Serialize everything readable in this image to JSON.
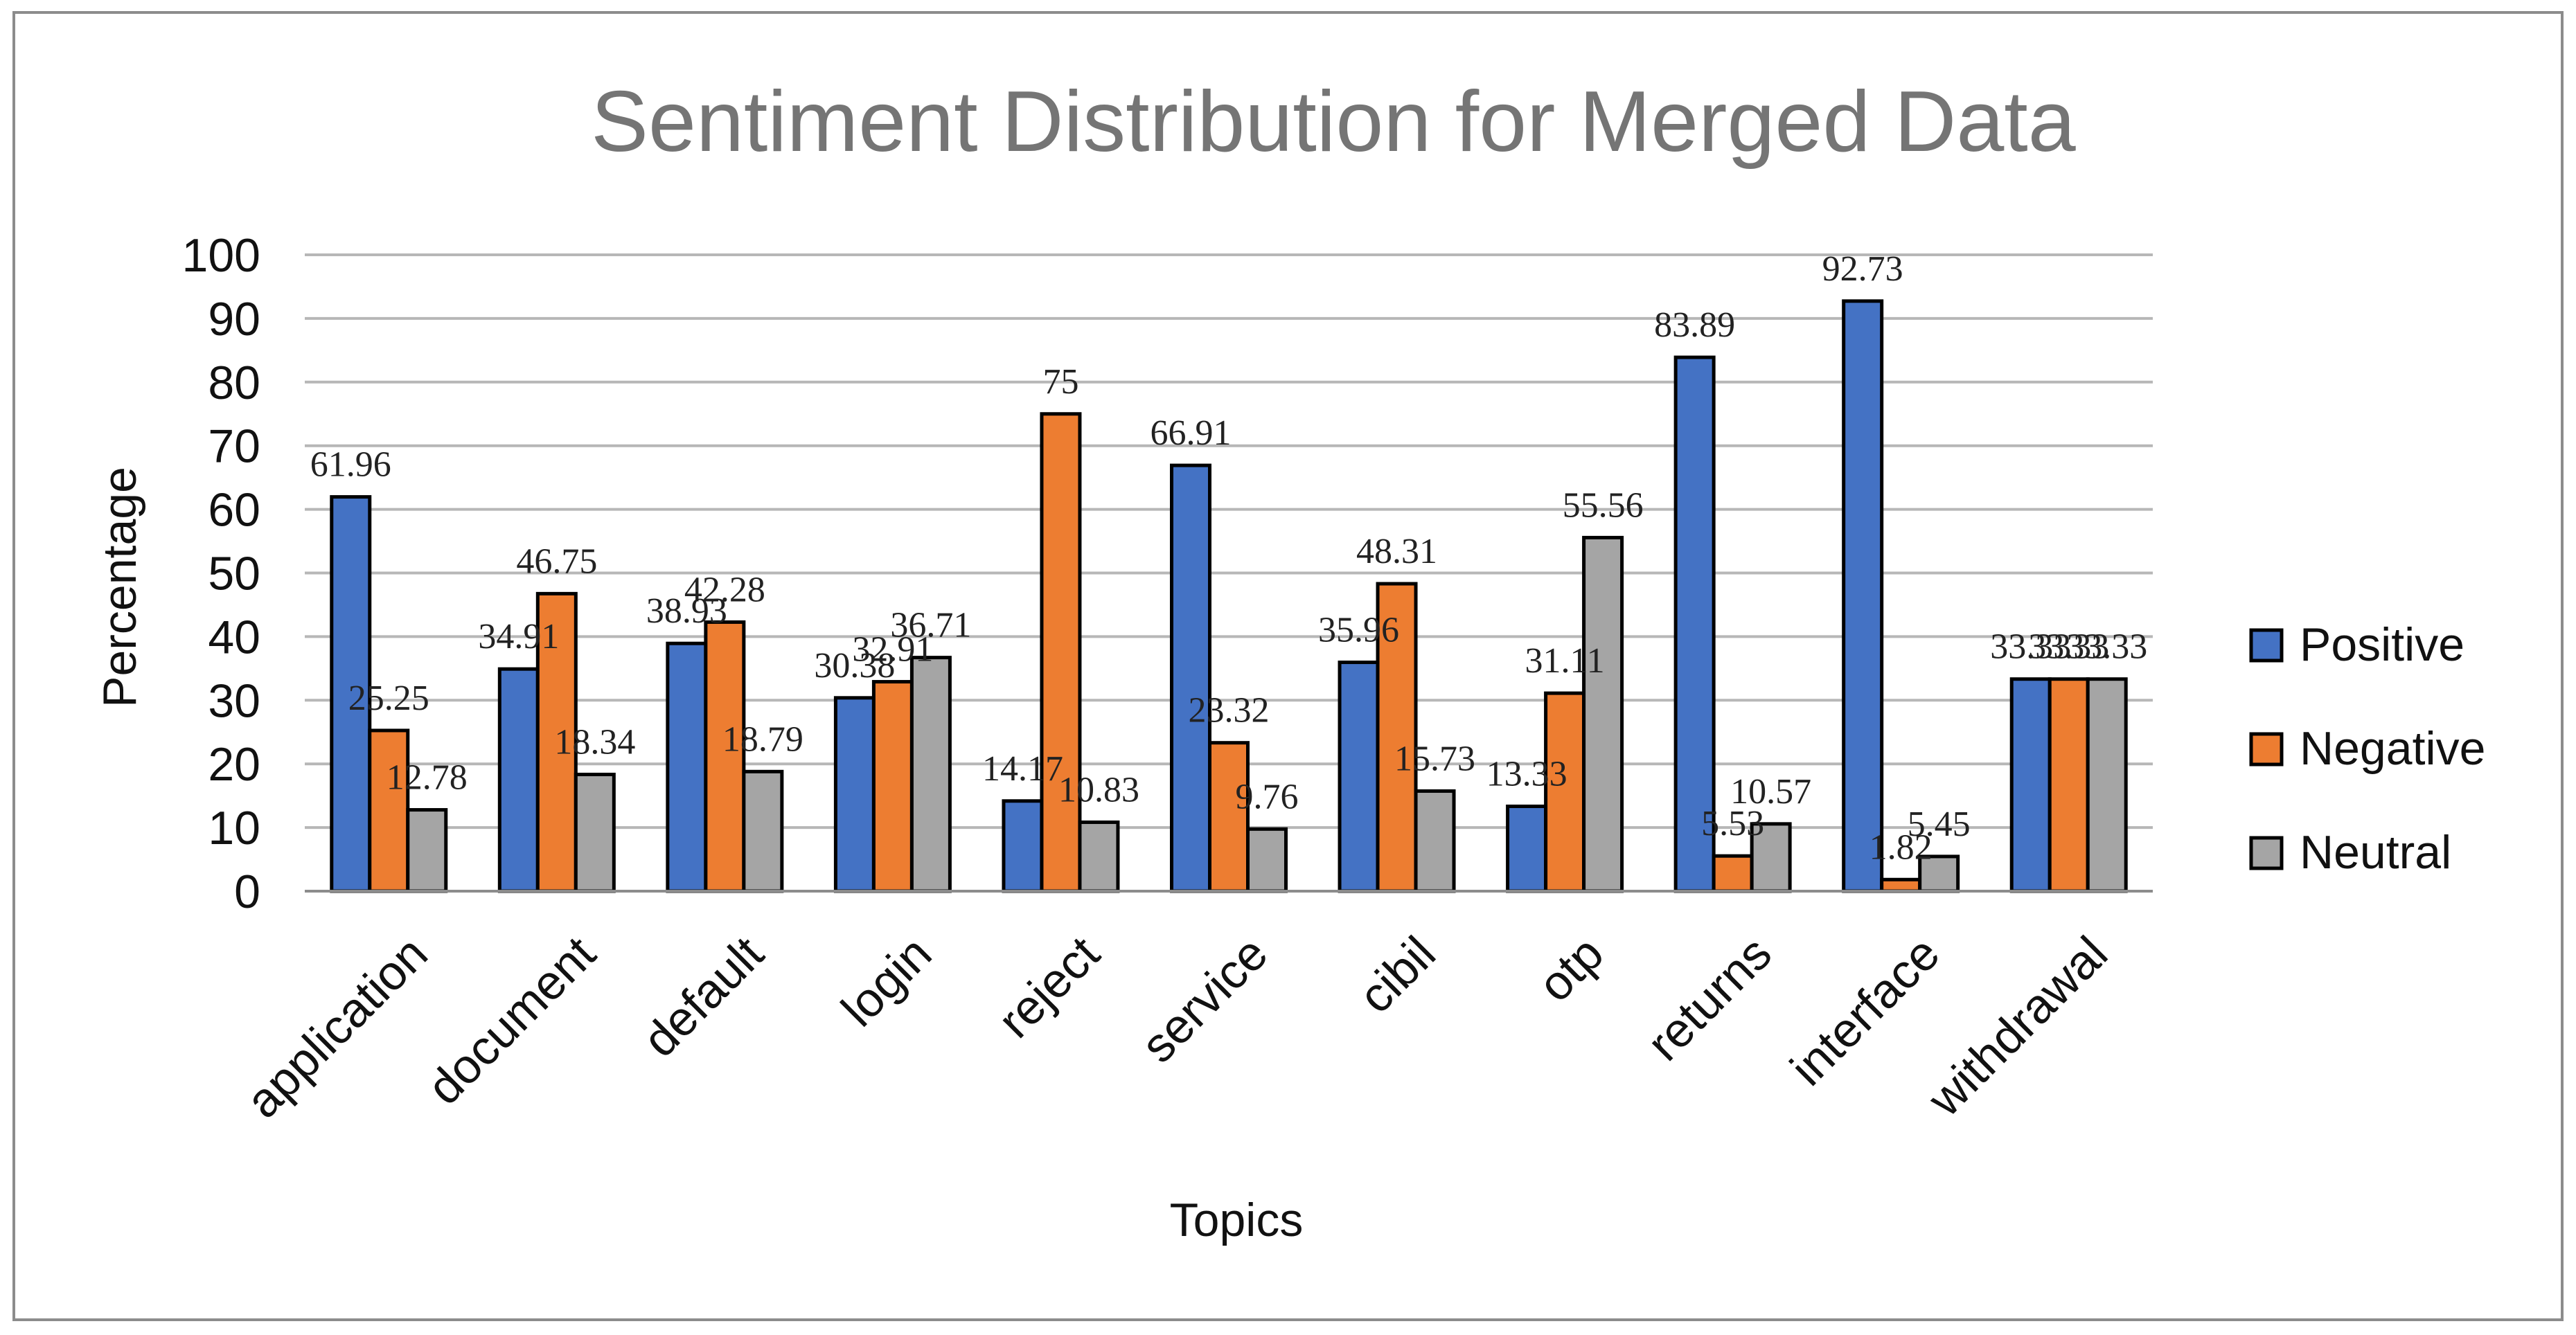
{
  "chart_data": {
    "type": "bar",
    "title": "Sentiment Distribution for Merged Data",
    "xlabel": "Topics",
    "ylabel": "Percentage",
    "ylim": [
      0,
      100
    ],
    "yticks": [
      "0",
      "10",
      "20",
      "30",
      "40",
      "50",
      "60",
      "70",
      "80",
      "90",
      "100"
    ],
    "grid": true,
    "legend_position": "right",
    "categories": [
      "application",
      "document",
      "default",
      "login",
      "reject",
      "service",
      "cibil",
      "otp",
      "returns",
      "interface",
      "withdrawal"
    ],
    "series": [
      {
        "name": "Positive",
        "color": "#4472C4",
        "values": [
          61.96,
          34.91,
          38.93,
          30.38,
          14.17,
          66.91,
          35.96,
          13.33,
          83.89,
          92.73,
          33.33
        ],
        "labels": [
          "61.96",
          "34.91",
          "38.93",
          "30.38",
          "14.17",
          "66.91",
          "35.96",
          "13.33",
          "83.89",
          "92.73",
          "33.33"
        ]
      },
      {
        "name": "Negative",
        "color": "#ED7D31",
        "values": [
          25.25,
          46.75,
          42.28,
          32.91,
          75,
          23.32,
          48.31,
          31.11,
          5.53,
          1.82,
          33.33
        ],
        "labels": [
          "25.25",
          "46.75",
          "42.28",
          "32.91",
          "75",
          "23.32",
          "48.31",
          "31.11",
          "5.53",
          "1.82",
          "33.33"
        ]
      },
      {
        "name": "Neutral",
        "color": "#A5A5A5",
        "values": [
          12.78,
          18.34,
          18.79,
          36.71,
          10.83,
          9.76,
          15.73,
          55.56,
          10.57,
          5.45,
          33.33
        ],
        "labels": [
          "12.78",
          "18.34",
          "18.79",
          "36.71",
          "10.83",
          "9.76",
          "15.73",
          "55.56",
          "10.57",
          "5.45",
          "33.33"
        ]
      }
    ]
  }
}
